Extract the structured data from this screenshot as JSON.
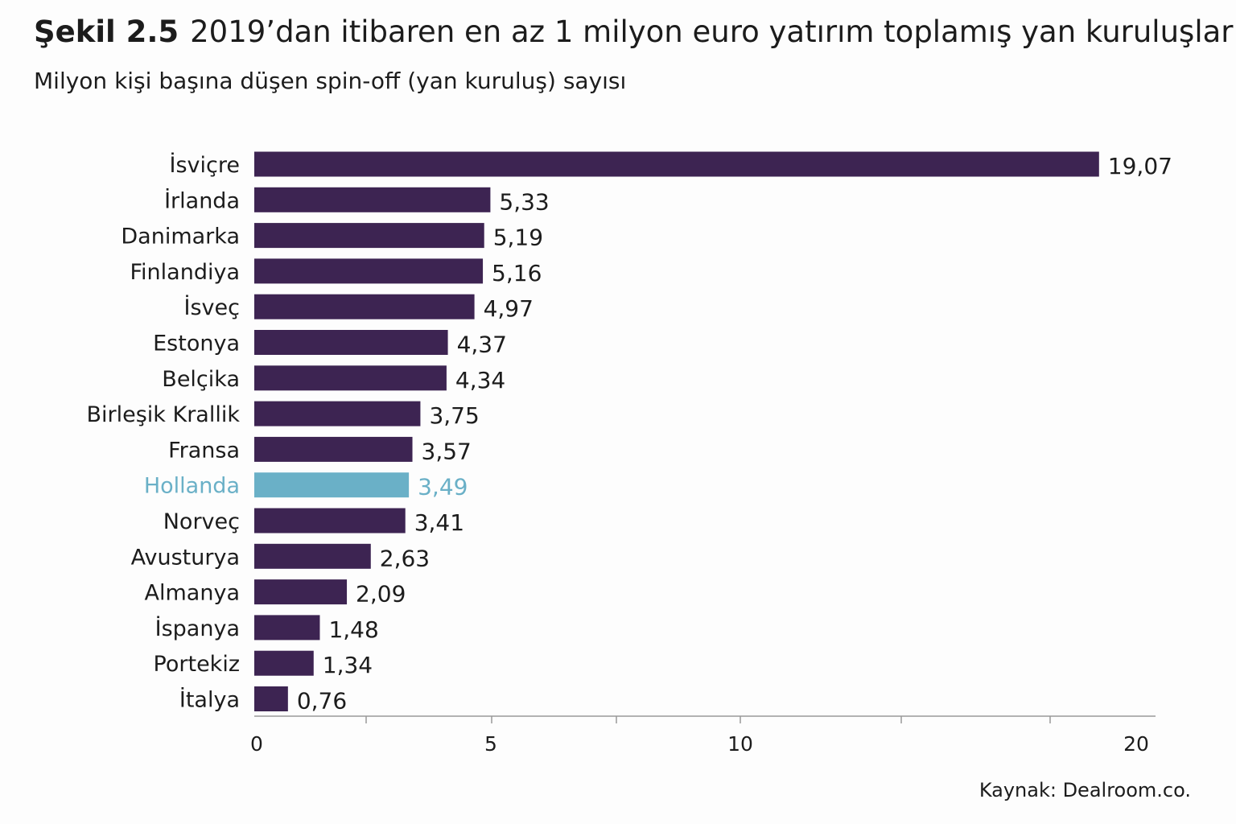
{
  "colors": {
    "bar": "#3d2452",
    "highlight": "#6ab0c7",
    "text": "#1c1c1c",
    "axis": "#999999"
  },
  "header": {
    "figure_label": "Şekil 2.5",
    "title": "2019’dan itibaren en az 1 milyon euro yatırım toplamış yan kuruluşlar",
    "subtitle": "Milyon kişi başına düşen spin-off (yan kuruluş) sayısı"
  },
  "source": "Kaynak: Dealroom.co.",
  "chart_data": {
    "type": "bar",
    "orientation": "horizontal",
    "title": "2019’dan itibaren en az 1 milyon euro yatırım toplamış yan kuruluşlar",
    "subtitle": "Milyon kişi başına düşen spin-off (yan kuruluş) sayısı",
    "categories": [
      "İsviçre",
      "İrlanda",
      "Danimarka",
      "Finlandiya",
      "İsveç",
      "Estonya",
      "Belçika",
      "Birleşik Krallik",
      "Fransa",
      "Hollanda",
      "Norveç",
      "Avusturya",
      "Almanya",
      "İspanya",
      "Portekiz",
      "İtalya"
    ],
    "values": [
      19.07,
      5.33,
      5.19,
      5.16,
      4.97,
      4.37,
      4.34,
      3.75,
      3.57,
      3.49,
      3.41,
      2.63,
      2.09,
      1.48,
      1.34,
      0.76
    ],
    "value_labels": [
      "19,07",
      "5,33",
      "5,19",
      "5,16",
      "4,97",
      "4,37",
      "4,34",
      "3,75",
      "3,57",
      "3,49",
      "3,41",
      "2,63",
      "2,09",
      "1,48",
      "1,34",
      "0,76"
    ],
    "highlight": "Hollanda",
    "xlim": [
      0,
      20
    ],
    "xticks": [
      0,
      5,
      10,
      20
    ],
    "xtick_labels": [
      "0",
      "5",
      "10",
      "20"
    ],
    "xlabel": "",
    "ylabel": "",
    "grid": false,
    "legend": "none"
  }
}
